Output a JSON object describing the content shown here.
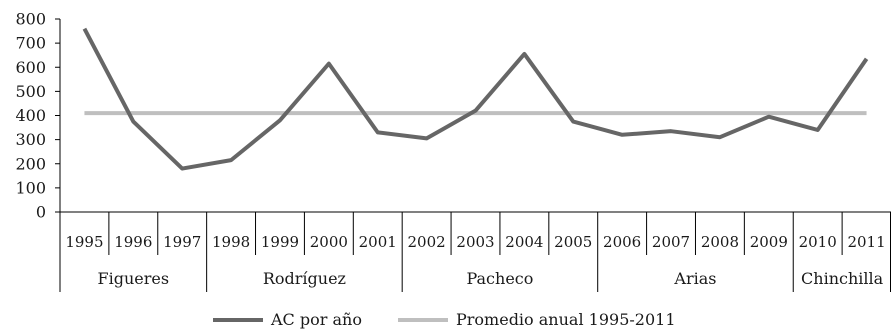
{
  "chart_data": {
    "type": "line",
    "categories": [
      "1995",
      "1996",
      "1997",
      "1998",
      "1999",
      "2000",
      "2001",
      "2002",
      "2003",
      "2004",
      "2005",
      "2006",
      "2007",
      "2008",
      "2009",
      "2010",
      "2011"
    ],
    "groups": [
      {
        "label": "Figueres",
        "start": 0,
        "end": 2
      },
      {
        "label": "Rodríguez",
        "start": 3,
        "end": 6
      },
      {
        "label": "Pacheco",
        "start": 7,
        "end": 10
      },
      {
        "label": "Arias",
        "start": 11,
        "end": 14
      },
      {
        "label": "Chinchilla",
        "start": 15,
        "end": 16
      }
    ],
    "series": [
      {
        "name": "AC por año",
        "color": "#666666",
        "values": [
          760,
          375,
          180,
          215,
          380,
          615,
          330,
          305,
          420,
          655,
          375,
          320,
          335,
          310,
          395,
          340,
          635
        ]
      },
      {
        "name": "Promedio anual 1995-2011",
        "color": "#bfbfbf",
        "values": [
          410,
          410,
          410,
          410,
          410,
          410,
          410,
          410,
          410,
          410,
          410,
          410,
          410,
          410,
          410,
          410,
          410
        ]
      }
    ],
    "ylim": [
      0,
      800
    ],
    "yticks": [
      0,
      100,
      200,
      300,
      400,
      500,
      600,
      700,
      800
    ],
    "grid": false,
    "legend_position": "bottom",
    "title": "",
    "xlabel": "",
    "ylabel": ""
  }
}
